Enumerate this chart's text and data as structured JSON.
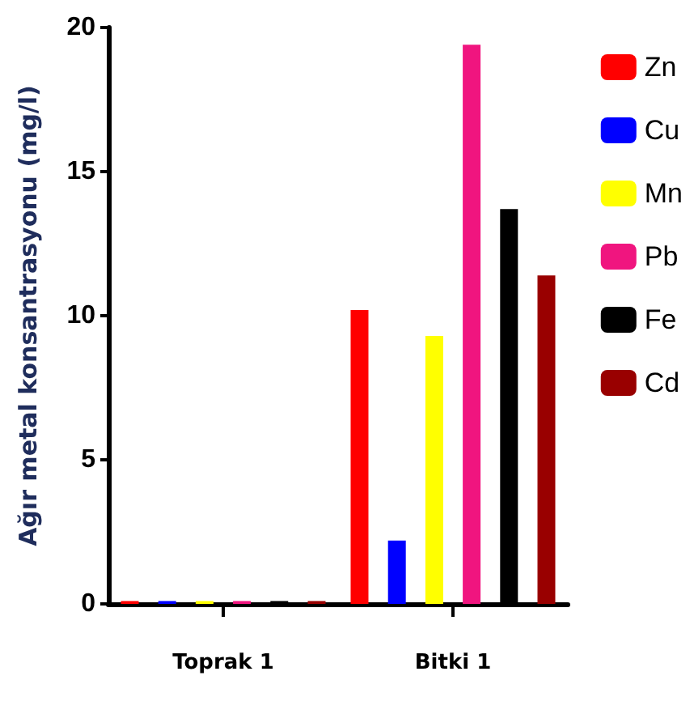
{
  "chart_data": {
    "type": "bar",
    "ylabel": "Ağır metal konsantrasyonu (mg/l)",
    "categories": [
      "Toprak 1",
      "Bitki 1"
    ],
    "series": [
      {
        "name": "Zn",
        "color": "#ff0000",
        "values": [
          0.1,
          10.2
        ]
      },
      {
        "name": "Cu",
        "color": "#0000ff",
        "values": [
          0.1,
          2.2
        ]
      },
      {
        "name": "Mn",
        "color": "#ffff00",
        "values": [
          0.1,
          9.3
        ]
      },
      {
        "name": "Pb",
        "color": "#f0157f",
        "values": [
          0.1,
          19.4
        ]
      },
      {
        "name": "Fe",
        "color": "#000000",
        "values": [
          0.1,
          13.7
        ]
      },
      {
        "name": "Cd",
        "color": "#990000",
        "values": [
          0.1,
          11.4
        ]
      }
    ],
    "ylim": [
      0,
      20
    ],
    "yticks": [
      0,
      5,
      10,
      15,
      20
    ],
    "grid": false,
    "legend": "right"
  }
}
